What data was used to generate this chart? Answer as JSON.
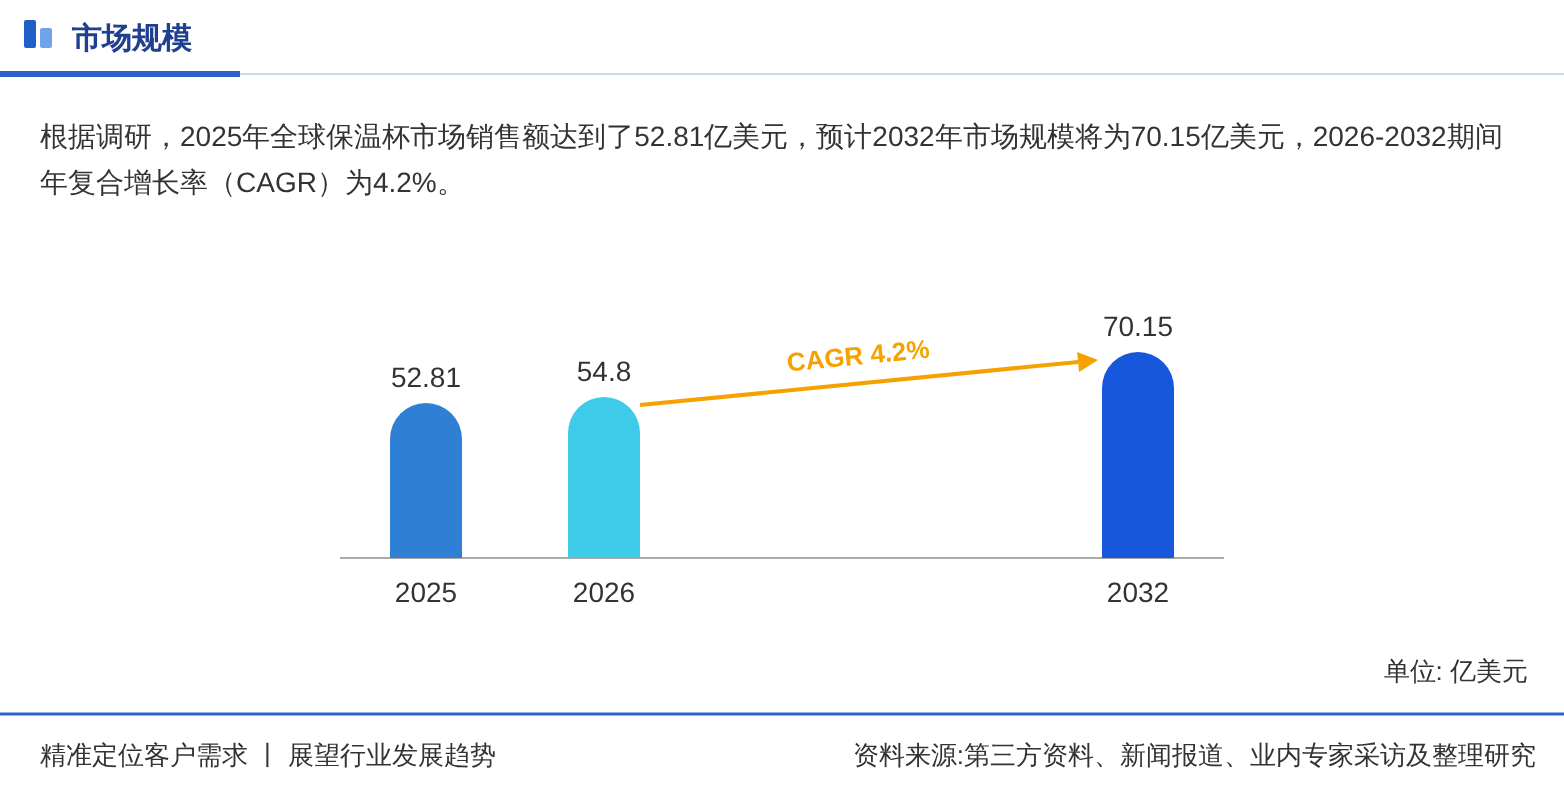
{
  "chart_data": {
    "type": "bar",
    "title": "市场规模",
    "subtitle": "根据调研，2025年全球保温杯市场销售额达到了52.81亿美元，预计2032年市场规模将为70.15亿美元，2026-2032期间年复合增长率（CAGR）为4.2%。",
    "categories": [
      "2025",
      "2026",
      null,
      null,
      "2032"
    ],
    "values": [
      52.81,
      54.8,
      null,
      null,
      70.15
    ],
    "colors": [
      "#2f80d4",
      "#3ecbea",
      null,
      null,
      "#1657dc"
    ],
    "data_labels": true,
    "annotations": [
      "CAGR 4.2%",
      "单位: 亿美元",
      "精准定位客户需求 丨 展望行业发展趋势",
      "资料来源:第三方资料、新闻报道、业内专家采访及整理研究"
    ]
  }
}
